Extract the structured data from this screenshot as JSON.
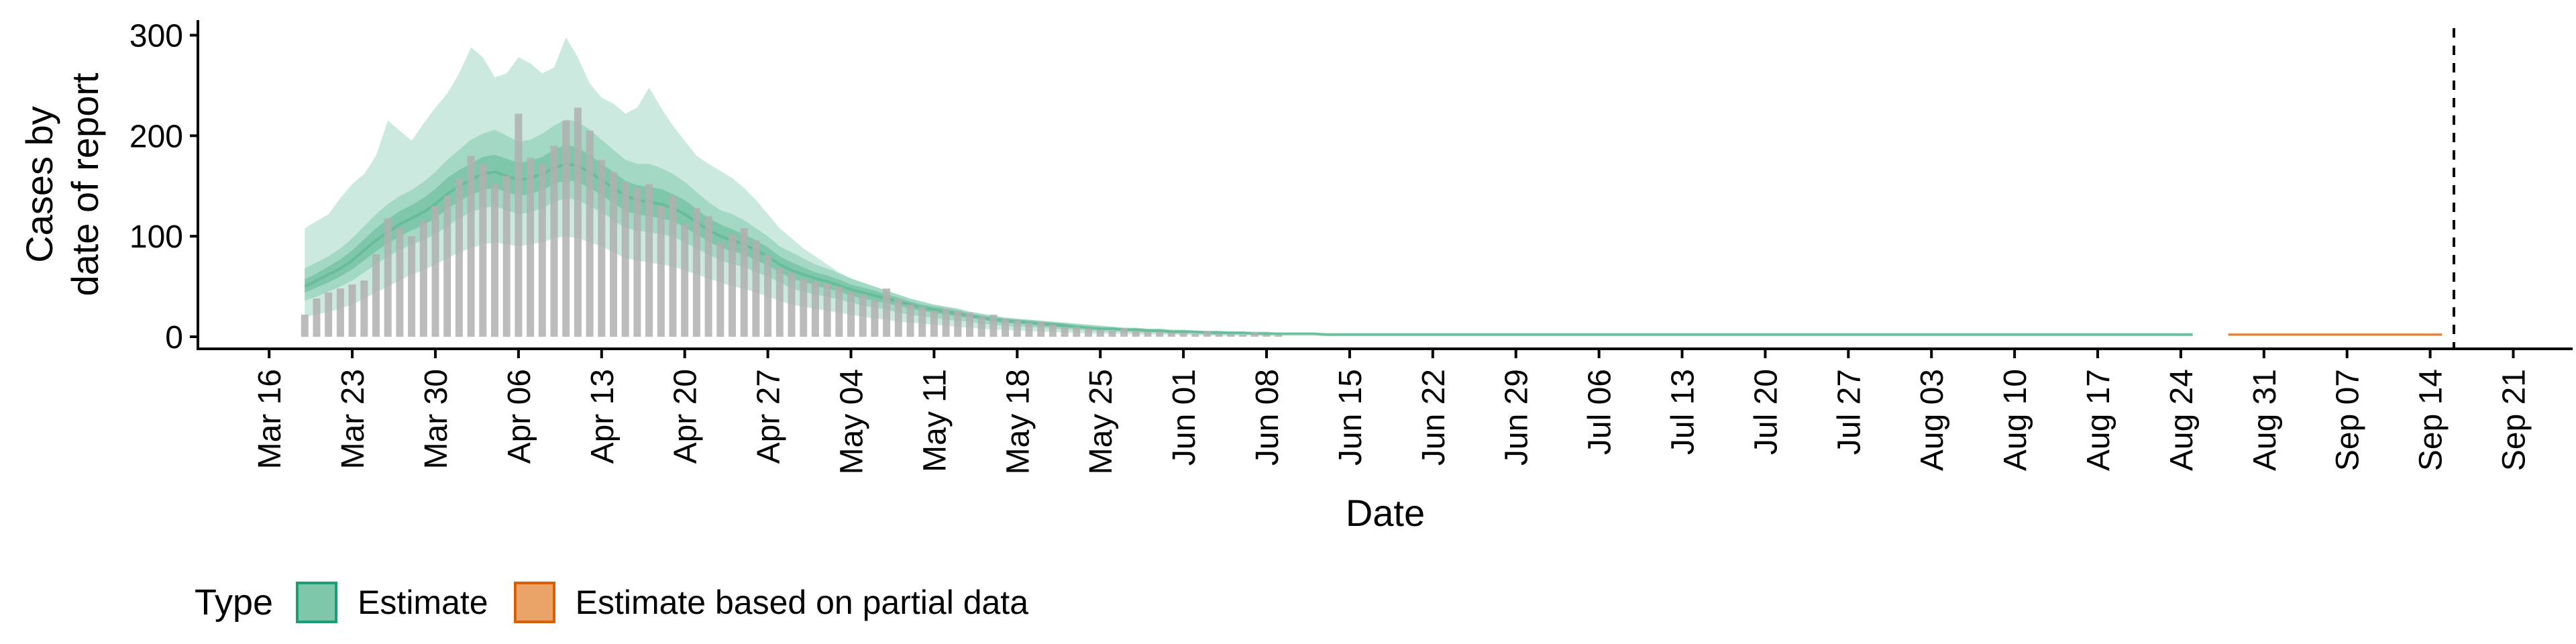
{
  "chart_data": {
    "type": "area",
    "title": "",
    "xlabel": "Date",
    "ylabel_lines": [
      "Cases by",
      "date of report"
    ],
    "yticks": [
      0,
      100,
      200,
      300
    ],
    "ylim": [
      -12,
      315
    ],
    "xlim": [
      "2020-03-10",
      "2020-09-26"
    ],
    "xticks": [
      "2020-03-16",
      "2020-03-23",
      "2020-03-30",
      "2020-04-06",
      "2020-04-13",
      "2020-04-20",
      "2020-04-27",
      "2020-05-04",
      "2020-05-11",
      "2020-05-18",
      "2020-05-25",
      "2020-06-01",
      "2020-06-08",
      "2020-06-15",
      "2020-06-22",
      "2020-06-29",
      "2020-07-06",
      "2020-07-13",
      "2020-07-20",
      "2020-07-27",
      "2020-08-03",
      "2020-08-10",
      "2020-08-17",
      "2020-08-24",
      "2020-08-31",
      "2020-09-07",
      "2020-09-14",
      "2020-09-21"
    ],
    "xtick_labels": [
      "Mar 16",
      "Mar 23",
      "Mar 30",
      "Apr 06",
      "Apr 13",
      "Apr 20",
      "Apr 27",
      "May 04",
      "May 11",
      "May 18",
      "May 25",
      "Jun 01",
      "Jun 08",
      "Jun 15",
      "Jun 22",
      "Jun 29",
      "Jul 06",
      "Jul 13",
      "Jul 20",
      "Jul 27",
      "Aug 03",
      "Aug 10",
      "Aug 17",
      "Aug 24",
      "Aug 31",
      "Sep 07",
      "Sep 14",
      "Sep 21"
    ],
    "vline_date": "2020-09-16",
    "legend_placement": "bottom-left",
    "colors": {
      "estimate": "#1b9e77",
      "partial": "#d95f02",
      "bars": "#b0b0b0",
      "estimate_fills": [
        "#cbe9de",
        "#a3d8c4",
        "#7ec7aa",
        "#59b690"
      ],
      "partial_fills": [
        "#f7dcc6",
        "#f0c09a"
      ]
    },
    "observed": {
      "start_date": "2020-03-19",
      "values": [
        22,
        38,
        44,
        48,
        52,
        56,
        82,
        118,
        108,
        100,
        115,
        130,
        140,
        158,
        180,
        172,
        152,
        160,
        222,
        178,
        172,
        190,
        215,
        228,
        205,
        176,
        164,
        154,
        148,
        152,
        130,
        140,
        112,
        128,
        120,
        94,
        102,
        108,
        96,
        82,
        68,
        64,
        58,
        55,
        53,
        50,
        44,
        42,
        36,
        48,
        38,
        32,
        30,
        26,
        28,
        26,
        24,
        20,
        22,
        18,
        16,
        14,
        15,
        12,
        10,
        10,
        8,
        7,
        6,
        8,
        6,
        5,
        5,
        4,
        4,
        3,
        5,
        3,
        3,
        2,
        4,
        2,
        2
      ]
    },
    "estimate": {
      "start_date": "2020-03-19",
      "median": [
        50,
        56,
        62,
        68,
        76,
        86,
        96,
        104,
        112,
        118,
        124,
        132,
        142,
        150,
        156,
        162,
        164,
        160,
        156,
        158,
        162,
        168,
        172,
        170,
        164,
        156,
        148,
        140,
        136,
        134,
        132,
        128,
        122,
        114,
        106,
        100,
        96,
        92,
        86,
        80,
        72,
        66,
        62,
        58,
        55,
        51,
        47,
        44,
        41,
        38,
        35,
        32,
        29,
        27,
        25,
        23,
        21,
        19,
        17,
        16,
        15,
        14,
        13,
        12,
        11,
        10,
        9,
        8,
        8,
        7,
        7,
        6,
        6,
        5,
        5,
        5,
        4,
        4,
        4,
        4,
        3,
        3,
        3,
        3,
        3,
        3,
        2,
        2,
        2,
        2,
        2,
        2,
        2,
        2,
        2,
        2,
        2,
        2,
        2,
        2,
        2,
        2,
        2,
        2,
        2,
        2,
        2,
        2,
        2,
        2,
        2,
        2,
        2,
        2,
        2,
        2,
        2,
        2,
        2,
        2,
        2,
        2,
        2,
        2,
        2,
        2,
        2,
        2,
        2,
        2,
        2,
        2,
        2,
        2,
        2,
        2,
        2,
        2,
        2,
        2,
        2,
        2,
        2,
        2,
        2,
        2,
        2,
        2,
        2,
        2,
        2,
        2,
        2,
        2,
        2,
        2,
        2,
        2,
        2,
        2
      ],
      "lower_90": [
        20,
        22,
        25,
        28,
        32,
        38,
        44,
        50,
        56,
        62,
        66,
        72,
        78,
        84,
        88,
        92,
        94,
        92,
        90,
        92,
        94,
        98,
        100,
        98,
        94,
        90,
        84,
        78,
        76,
        74,
        72,
        70,
        66,
        62,
        58,
        54,
        50,
        48,
        44,
        40,
        36,
        32,
        30,
        28,
        26,
        24,
        22,
        20,
        18,
        17,
        15,
        14,
        13,
        12,
        11,
        10,
        9,
        8,
        7,
        7,
        6,
        6,
        5,
        5,
        4,
        4,
        3,
        3,
        3,
        3,
        2,
        2,
        2,
        2,
        2,
        2,
        1,
        1,
        1,
        1,
        1,
        1,
        1,
        1,
        1,
        1,
        1,
        1,
        1,
        1,
        1,
        1,
        1,
        1,
        1,
        1,
        1,
        1,
        1,
        1,
        1,
        1,
        1,
        1,
        1,
        1,
        1,
        1,
        1,
        1,
        1,
        1,
        1,
        1,
        1,
        1,
        1,
        1,
        1,
        1,
        1,
        1,
        1,
        1,
        1,
        1,
        1,
        1,
        1,
        1,
        1,
        1,
        1,
        1,
        1,
        1,
        1,
        1,
        1,
        1,
        1,
        1,
        1,
        1,
        1,
        1,
        1,
        1,
        1,
        1,
        1,
        1,
        1,
        1,
        1,
        1,
        1,
        1,
        1,
        1
      ],
      "upper_90": [
        108,
        115,
        122,
        138,
        152,
        162,
        180,
        215,
        205,
        195,
        212,
        228,
        242,
        262,
        288,
        278,
        258,
        262,
        278,
        272,
        262,
        268,
        298,
        278,
        252,
        238,
        232,
        222,
        228,
        248,
        228,
        210,
        195,
        180,
        172,
        165,
        158,
        148,
        136,
        122,
        108,
        98,
        88,
        80,
        72,
        64,
        58,
        52,
        46,
        40,
        35,
        30,
        26,
        23,
        20,
        18,
        16,
        15,
        14,
        13,
        12,
        11,
        10,
        9,
        9,
        8,
        8,
        7,
        7,
        6,
        6,
        6,
        6,
        5,
        5,
        5,
        5,
        5,
        4,
        4,
        4,
        4,
        4,
        4,
        4,
        4,
        4,
        4,
        4,
        4,
        4,
        4,
        4,
        4,
        4,
        4,
        4,
        4,
        4,
        4,
        4,
        4,
        4,
        4,
        4,
        4,
        4,
        4,
        4,
        4,
        4,
        4,
        4,
        4,
        4,
        4,
        4,
        4,
        4,
        4,
        4,
        4,
        4,
        4,
        4,
        4,
        4,
        4,
        4,
        4,
        4,
        4,
        4,
        4,
        4,
        4,
        4,
        4,
        4,
        4,
        4,
        4,
        4,
        4,
        4,
        4,
        4,
        4,
        4,
        4,
        4,
        4,
        4,
        4,
        4,
        4,
        4,
        4,
        4,
        4
      ],
      "lower_50": [
        36,
        40,
        45,
        50,
        56,
        64,
        72,
        80,
        86,
        92,
        96,
        102,
        110,
        118,
        124,
        128,
        130,
        126,
        122,
        124,
        128,
        134,
        138,
        136,
        130,
        124,
        116,
        108,
        106,
        104,
        102,
        100,
        94,
        88,
        82,
        76,
        72,
        70,
        64,
        60,
        54,
        48,
        45,
        42,
        40,
        37,
        34,
        31,
        29,
        27,
        24,
        22,
        20,
        19,
        17,
        16,
        15,
        13,
        12,
        11,
        10,
        10,
        9,
        8,
        7,
        7,
        6,
        5,
        5,
        5,
        4,
        4,
        4,
        3,
        3,
        3,
        2,
        2,
        2,
        2,
        2,
        2,
        2,
        2,
        2,
        2,
        1,
        1,
        1,
        1,
        1,
        1,
        1,
        1,
        1,
        1,
        1,
        1,
        1,
        1,
        1,
        1,
        1,
        1,
        1,
        1,
        1,
        1,
        1,
        1,
        1,
        1,
        1,
        1,
        1,
        1,
        1,
        1,
        1,
        1,
        1,
        1,
        1,
        1,
        1,
        1,
        1,
        1,
        1,
        1,
        1,
        1,
        1,
        1,
        1,
        1,
        1,
        1,
        1,
        1,
        1,
        1,
        1,
        1,
        1,
        1,
        1,
        1,
        1,
        1,
        1,
        1,
        1,
        1,
        1,
        1,
        1,
        1,
        1,
        1
      ],
      "upper_50": [
        68,
        74,
        80,
        88,
        98,
        110,
        122,
        132,
        140,
        146,
        154,
        164,
        176,
        186,
        196,
        202,
        206,
        200,
        194,
        196,
        202,
        210,
        216,
        214,
        206,
        196,
        186,
        176,
        172,
        172,
        168,
        162,
        154,
        144,
        134,
        126,
        122,
        116,
        108,
        100,
        90,
        84,
        78,
        72,
        68,
        63,
        58,
        54,
        50,
        46,
        42,
        38,
        35,
        32,
        30,
        28,
        25,
        23,
        21,
        19,
        18,
        17,
        16,
        15,
        14,
        13,
        12,
        11,
        10,
        9,
        9,
        8,
        8,
        7,
        7,
        6,
        6,
        6,
        5,
        5,
        5,
        5,
        4,
        4,
        4,
        4,
        3,
        3,
        3,
        3,
        3,
        3,
        3,
        3,
        3,
        3,
        3,
        3,
        3,
        3,
        3,
        3,
        3,
        3,
        3,
        3,
        3,
        3,
        3,
        3,
        3,
        3,
        3,
        3,
        3,
        3,
        3,
        3,
        3,
        3,
        3,
        3,
        3,
        3,
        3,
        3,
        3,
        3,
        3,
        3,
        3,
        3,
        3,
        3,
        3,
        3,
        3,
        3,
        3,
        3,
        3,
        3,
        3,
        3,
        3,
        3,
        3,
        3,
        3,
        3,
        3,
        3,
        3,
        3,
        3,
        3,
        3,
        3,
        3,
        3
      ],
      "lower_20": [
        44,
        49,
        54,
        60,
        67,
        76,
        85,
        93,
        100,
        106,
        111,
        118,
        127,
        135,
        141,
        146,
        148,
        144,
        140,
        142,
        146,
        152,
        156,
        154,
        148,
        141,
        133,
        125,
        122,
        120,
        118,
        115,
        109,
        102,
        95,
        89,
        85,
        82,
        76,
        71,
        64,
        58,
        55,
        51,
        48,
        45,
        41,
        38,
        36,
        33,
        31,
        28,
        26,
        24,
        22,
        20,
        19,
        17,
        15,
        14,
        13,
        12,
        11,
        10,
        9,
        9,
        8,
        7,
        7,
        6,
        6,
        5,
        5,
        4,
        4,
        4,
        3,
        3,
        3,
        3,
        3,
        3,
        3,
        3,
        3,
        3,
        2,
        2,
        2,
        2,
        2,
        2,
        2,
        2,
        2,
        2,
        2,
        2,
        2,
        2,
        2,
        2,
        2,
        2,
        2,
        2,
        2,
        2,
        2,
        2,
        2,
        2,
        2,
        2,
        2,
        2,
        2,
        2,
        2,
        2,
        2,
        2,
        2,
        2,
        2,
        2,
        2,
        2,
        2,
        2,
        2,
        2,
        2,
        2,
        2,
        2,
        2,
        2,
        2,
        2,
        2,
        2,
        2,
        2,
        2,
        2,
        2,
        2,
        2,
        2,
        2,
        2,
        2,
        2,
        2,
        2,
        2,
        2,
        2,
        2
      ],
      "upper_20": [
        57,
        63,
        70,
        77,
        86,
        97,
        108,
        117,
        125,
        131,
        138,
        147,
        158,
        166,
        172,
        179,
        181,
        177,
        173,
        175,
        179,
        186,
        191,
        188,
        181,
        172,
        164,
        155,
        151,
        149,
        147,
        142,
        136,
        127,
        118,
        112,
        107,
        102,
        96,
        89,
        80,
        74,
        69,
        64,
        61,
        57,
        52,
        49,
        46,
        42,
        39,
        35,
        32,
        30,
        28,
        26,
        23,
        21,
        19,
        18,
        17,
        16,
        15,
        14,
        13,
        11,
        10,
        9,
        9,
        8,
        8,
        7,
        7,
        6,
        6,
        6,
        5,
        5,
        5,
        5,
        4,
        4,
        4,
        4,
        4,
        4,
        3,
        3,
        3,
        3,
        3,
        3,
        3,
        3,
        3,
        3,
        3,
        3,
        3,
        3,
        3,
        3,
        3,
        3,
        3,
        3,
        3,
        3,
        3,
        3,
        3,
        3,
        3,
        3,
        3,
        3,
        3,
        3,
        3,
        3,
        3,
        3,
        3,
        3,
        3,
        3,
        3,
        3,
        3,
        3,
        3,
        3,
        3,
        3,
        3,
        3,
        3,
        3,
        3,
        3,
        3,
        3,
        3,
        3,
        3,
        3,
        3,
        3,
        3,
        3,
        3,
        3,
        3,
        3,
        3,
        3,
        3,
        3,
        3,
        3
      ]
    },
    "partial": {
      "start_date": "2020-08-28",
      "end_date": "2020-09-15",
      "median": 2,
      "lower_90": 1,
      "upper_90": 4,
      "lower_50": 1.5,
      "upper_50": 3
    }
  },
  "legend": {
    "title": "Type",
    "items": [
      {
        "label": "Estimate",
        "fill": "#7ec7aa",
        "border": "#1b9e77"
      },
      {
        "label": "Estimate based on partial data",
        "fill": "#eba467",
        "border": "#d95f02"
      }
    ]
  }
}
